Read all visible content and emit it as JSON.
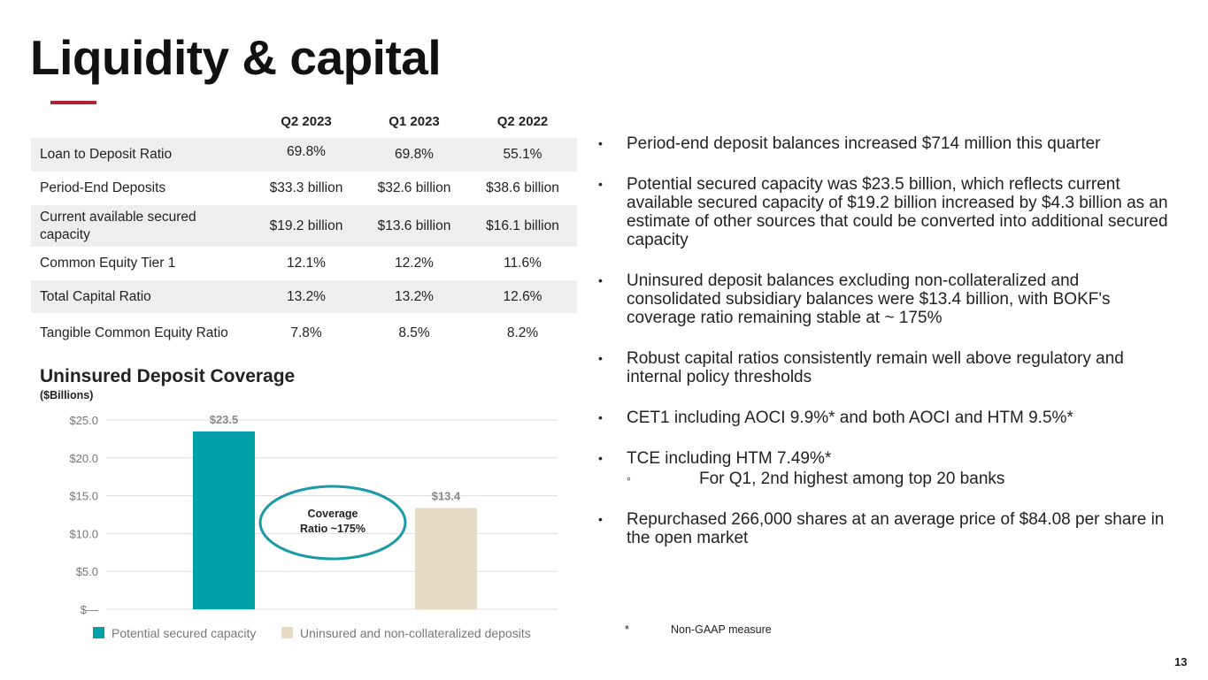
{
  "slide": {
    "title": "Liquidity & capital",
    "page_number": "13",
    "accent_color": "#b01f34"
  },
  "table": {
    "headers": [
      "",
      "Q2 2023",
      "Q1 2023",
      "Q2 2022"
    ],
    "rows": [
      {
        "label": "Loan to Deposit Ratio",
        "values": [
          "69.8%",
          "69.8%",
          "55.1%"
        ]
      },
      {
        "label": "Period-End Deposits",
        "values": [
          "$33.3 billion",
          "$32.6 billion",
          "$38.6 billion"
        ]
      },
      {
        "label": "Current available secured capacity",
        "values": [
          "$19.2 billion",
          "$13.6 billion",
          "$16.1 billion"
        ]
      },
      {
        "label": "Common Equity Tier 1",
        "values": [
          "12.1%",
          "12.2%",
          "11.6%"
        ]
      },
      {
        "label": "Total Capital Ratio",
        "values": [
          "13.2%",
          "13.2%",
          "12.6%"
        ]
      },
      {
        "label": "Tangible Common Equity Ratio",
        "values": [
          "7.8%",
          "8.5%",
          "8.2%"
        ]
      }
    ]
  },
  "chart_data": {
    "type": "bar",
    "title": "Uninsured Deposit Coverage",
    "subtitle": "($Billions)",
    "categories": [
      "Potential secured capacity",
      "Uninsured and non-collateralized deposits"
    ],
    "values": [
      23.5,
      13.4
    ],
    "data_labels": [
      "$23.5",
      "$13.4"
    ],
    "colors": [
      "#00a0a8",
      "#e6dcc6"
    ],
    "ylim": [
      0,
      25
    ],
    "yticks": [
      0,
      5,
      10,
      15,
      20,
      25
    ],
    "ytick_labels": [
      "$—",
      "$5.0",
      "$10.0",
      "$15.0",
      "$20.0",
      "$25.0"
    ],
    "grid": true,
    "legend": [
      "Potential secured capacity",
      "Uninsured and non-collateralized deposits"
    ],
    "legend_position": "bottom",
    "annotation": [
      "Coverage",
      "Ratio ~175%"
    ],
    "annotation_color": "#1a9aa6"
  },
  "bullets": [
    {
      "text": "Period-end deposit balances increased $714 million this quarter"
    },
    {
      "text": "Potential secured capacity was $23.5 billion, which reflects current available secured capacity of $19.2 billion increased by $4.3 billion as an estimate of other sources that could be converted into additional secured capacity"
    },
    {
      "text": "Uninsured deposit balances excluding non-collateralized and consolidated subsidiary balances were $13.4 billion, with BOKF's coverage ratio remaining stable at ~ 175%"
    },
    {
      "text": "Robust capital ratios consistently remain well above regulatory and internal policy thresholds"
    },
    {
      "text": "CET1 including AOCI 9.9%* and both AOCI and HTM 9.5%*"
    },
    {
      "text": "TCE including HTM 7.49%*",
      "sub": "For Q1, 2nd highest among top 20 banks"
    },
    {
      "text": "Repurchased 266,000 shares at an average price of $84.08 per share in the open market"
    }
  ],
  "footnote": {
    "symbol": "*",
    "text": "Non-GAAP measure"
  }
}
